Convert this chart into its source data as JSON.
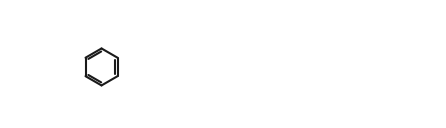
{
  "figsize": [
    4.46,
    1.28
  ],
  "dpi": 100,
  "bg": "#ffffff",
  "lw": 1.5,
  "lc": "#1a1a1a",
  "font_size": 7.5,
  "font_color": "#1a1a1a"
}
